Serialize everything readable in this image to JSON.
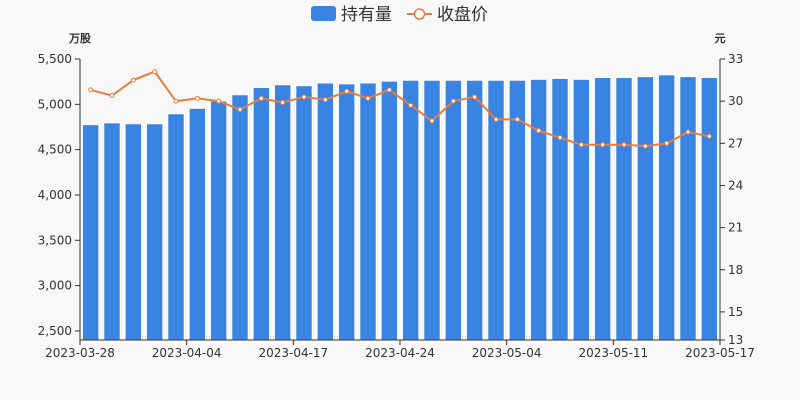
{
  "chart_data": {
    "type": "bar",
    "legend": {
      "position": "top-center",
      "items": [
        {
          "name": "持有量",
          "marker": "bar",
          "color": "#3983e2"
        },
        {
          "name": "收盘价",
          "marker": "line",
          "color": "#eb7d3c"
        }
      ]
    },
    "left_axis": {
      "unit": "万股",
      "ticks": [
        "2,500",
        "3,000",
        "3,500",
        "4,000",
        "4,500",
        "5,000",
        "5,500"
      ],
      "range": [
        2400,
        5500
      ]
    },
    "right_axis": {
      "unit": "元",
      "ticks": [
        "13",
        "15",
        "18",
        "21",
        "24",
        "27",
        "30",
        "33"
      ],
      "range": [
        13,
        33
      ]
    },
    "x_labels": [
      "2023-03-28",
      "2023-04-04",
      "2023-04-17",
      "2023-04-24",
      "2023-05-04",
      "2023-05-11",
      "2023-05-17"
    ],
    "grid": false,
    "series": [
      {
        "name": "持有量",
        "type": "bar",
        "axis": "left",
        "color": "#3983e2",
        "values": [
          4770,
          4790,
          4780,
          4780,
          4890,
          4950,
          5030,
          5100,
          5180,
          5210,
          5200,
          5230,
          5220,
          5230,
          5250,
          5260,
          5260,
          5260,
          5260,
          5260,
          5260,
          5270,
          5280,
          5270,
          5290,
          5290,
          5300,
          5320,
          5300,
          5290
        ]
      },
      {
        "name": "收盘价",
        "type": "line",
        "axis": "right",
        "color": "#eb7d3c",
        "values": [
          30.8,
          30.4,
          31.5,
          32.1,
          30.0,
          30.2,
          30.0,
          29.4,
          30.2,
          29.9,
          30.3,
          30.1,
          30.7,
          30.2,
          30.8,
          29.7,
          28.6,
          30.0,
          30.3,
          28.7,
          28.7,
          27.9,
          27.4,
          26.9,
          26.9,
          26.9,
          26.8,
          27.0,
          27.8,
          27.5
        ]
      }
    ]
  }
}
